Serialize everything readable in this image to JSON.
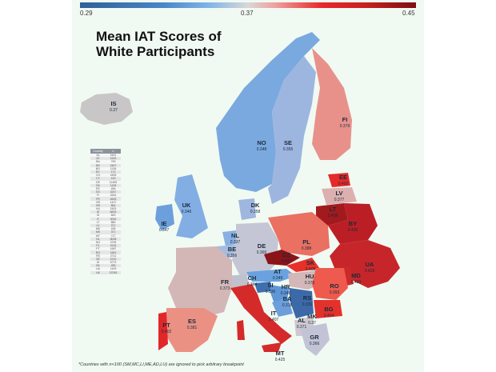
{
  "title_line1": "Mean IAT Scores of",
  "title_line2": "White Participants",
  "legend": {
    "min": "0.29",
    "mid": "0.37",
    "max": "0.45"
  },
  "footnote": "*Countries with n<100 (SM,MC,LI,ME,AD,LU) are ignored to pick arbitrary breakpoint",
  "table": {
    "headers": [
      "Country",
      "n"
    ],
    "rows": [
      [
        "AL",
        "1501"
      ],
      [
        "AT",
        "1624"
      ],
      [
        "BA",
        "799"
      ],
      [
        "BE",
        "2467"
      ],
      [
        "BG",
        "1136"
      ],
      [
        "BY",
        "172"
      ],
      [
        "CH",
        "1805"
      ],
      [
        "CY",
        "415"
      ],
      [
        "DE",
        "11459"
      ],
      [
        "DK",
        "1105"
      ],
      [
        "EE",
        "496"
      ],
      [
        "ES",
        "3247"
      ],
      [
        "FI",
        "4344"
      ],
      [
        "FR",
        "4609"
      ],
      [
        "GR",
        "1427"
      ],
      [
        "HR",
        "864"
      ],
      [
        "HU",
        "1502"
      ],
      [
        "IE",
        "6815"
      ],
      [
        "IS",
        "600"
      ],
      [
        "IT",
        "3002"
      ],
      [
        "LT",
        "889"
      ],
      [
        "LV",
        "371"
      ],
      [
        "MD",
        "185"
      ],
      [
        "MK",
        "371"
      ],
      [
        "MT",
        "717"
      ],
      [
        "NL",
        "8008"
      ],
      [
        "NO",
        "3799"
      ],
      [
        "PL",
        "3124"
      ],
      [
        "PT",
        "1987"
      ],
      [
        "RO",
        "1661"
      ],
      [
        "RS",
        "2711"
      ],
      [
        "SE",
        "2210"
      ],
      [
        "SI",
        "6773"
      ],
      [
        "SK",
        "455"
      ],
      [
        "UA",
        "1109"
      ],
      [
        "UK",
        "37053"
      ]
    ]
  },
  "colors": {
    "background": "#f1faf2",
    "low": "#2f5f97",
    "neutral": "#d8d8d8",
    "high": "#7d0f14"
  },
  "chart_data": {
    "type": "choropleth",
    "title": "Mean IAT Scores of White Participants",
    "colorscale": {
      "min": 0.29,
      "mid": 0.37,
      "max": 0.45,
      "low_color": "#2f5f97",
      "mid_color": "#d8d8d8",
      "high_color": "#7d0f14"
    },
    "countries": [
      {
        "code": "IS",
        "value": 0.37
      },
      {
        "code": "NO",
        "value": 0.348
      },
      {
        "code": "SE",
        "value": 0.355
      },
      {
        "code": "FI",
        "value": 0.379
      },
      {
        "code": "EE",
        "value": 0.402
      },
      {
        "code": "LV",
        "value": 0.377
      },
      {
        "code": "LT",
        "value": 0.438
      },
      {
        "code": "BY",
        "value": 0.425
      },
      {
        "code": "UA",
        "value": 0.429
      },
      {
        "code": "MD",
        "value": 0.423
      },
      {
        "code": "UK",
        "value": 0.346
      },
      {
        "code": "IE",
        "value": 0.347
      },
      {
        "code": "DK",
        "value": 0.358
      },
      {
        "code": "NL",
        "value": 0.337
      },
      {
        "code": "BE",
        "value": 0.356
      },
      {
        "code": "DE",
        "value": 0.365
      },
      {
        "code": "PL",
        "value": 0.388
      },
      {
        "code": "CZ",
        "value": 0.437
      },
      {
        "code": "SK",
        "value": 0.408
      },
      {
        "code": "AT",
        "value": 0.349
      },
      {
        "code": "HU",
        "value": 0.376
      },
      {
        "code": "RO",
        "value": 0.393
      },
      {
        "code": "CH",
        "value": 0.364
      },
      {
        "code": "FR",
        "value": 0.373
      },
      {
        "code": "SI",
        "value": 0.336
      },
      {
        "code": "HR",
        "value": 0.346
      },
      {
        "code": "BA",
        "value": 0.318
      },
      {
        "code": "RS",
        "value": 0.331
      },
      {
        "code": "BG",
        "value": 0.404
      },
      {
        "code": "MK",
        "value": 0.37
      },
      {
        "code": "AL",
        "value": 0.371
      },
      {
        "code": "GR",
        "value": 0.366
      },
      {
        "code": "IT",
        "value": 0.407
      },
      {
        "code": "ES",
        "value": 0.381
      },
      {
        "code": "PT",
        "value": 0.402
      },
      {
        "code": "MT",
        "value": 0.425
      }
    ],
    "annotations": [
      "*Countries with n<100 (SM,MC,LI,ME,AD,LU) are ignored to pick arbitrary breakpoint"
    ]
  },
  "labels": {
    "IS": {
      "c": "IS",
      "v": "0.37"
    },
    "NO": {
      "c": "NO",
      "v": "0.348"
    },
    "SE": {
      "c": "SE",
      "v": "0.355"
    },
    "FI": {
      "c": "FI",
      "v": "0.379"
    },
    "EE": {
      "c": "EE",
      "v": "0.402"
    },
    "LV": {
      "c": "LV",
      "v": "0.377"
    },
    "LT": {
      "c": "LT",
      "v": "0.438"
    },
    "BY": {
      "c": "BY",
      "v": "0.425"
    },
    "UA": {
      "c": "UA",
      "v": "0.429"
    },
    "MD": {
      "c": "MD",
      "v": "0.423"
    },
    "UK": {
      "c": "UK",
      "v": "0.346"
    },
    "IE": {
      "c": "IE",
      "v": "0.347"
    },
    "DK": {
      "c": "DK",
      "v": "0.358"
    },
    "NL": {
      "c": "NL",
      "v": "0.337"
    },
    "BE": {
      "c": "BE",
      "v": "0.356"
    },
    "DE": {
      "c": "DE",
      "v": "0.365"
    },
    "PL": {
      "c": "PL",
      "v": "0.388"
    },
    "CZ": {
      "c": "CZ",
      "v": "0.437"
    },
    "SK": {
      "c": "SK",
      "v": "0.408"
    },
    "AT": {
      "c": "AT",
      "v": "0.349"
    },
    "HU": {
      "c": "HU",
      "v": "0.376"
    },
    "RO": {
      "c": "RO",
      "v": "0.393"
    },
    "CH": {
      "c": "CH",
      "v": "0.364"
    },
    "FR": {
      "c": "FR",
      "v": "0.373"
    },
    "SI": {
      "c": "SI",
      "v": "0.336"
    },
    "HR": {
      "c": "HR",
      "v": "0.346"
    },
    "BA": {
      "c": "BA",
      "v": "0.318"
    },
    "RS": {
      "c": "RS",
      "v": "0.331"
    },
    "BG": {
      "c": "BG",
      "v": "0.404"
    },
    "MK": {
      "c": "MK",
      "v": "0.37"
    },
    "AL": {
      "c": "AL",
      "v": "0.371"
    },
    "GR": {
      "c": "GR",
      "v": "0.366"
    },
    "IT": {
      "c": "IT",
      "v": "0.407"
    },
    "ES": {
      "c": "ES",
      "v": "0.381"
    },
    "PT": {
      "c": "PT",
      "v": "0.402"
    },
    "MT": {
      "c": "MT",
      "v": "0.425"
    }
  }
}
